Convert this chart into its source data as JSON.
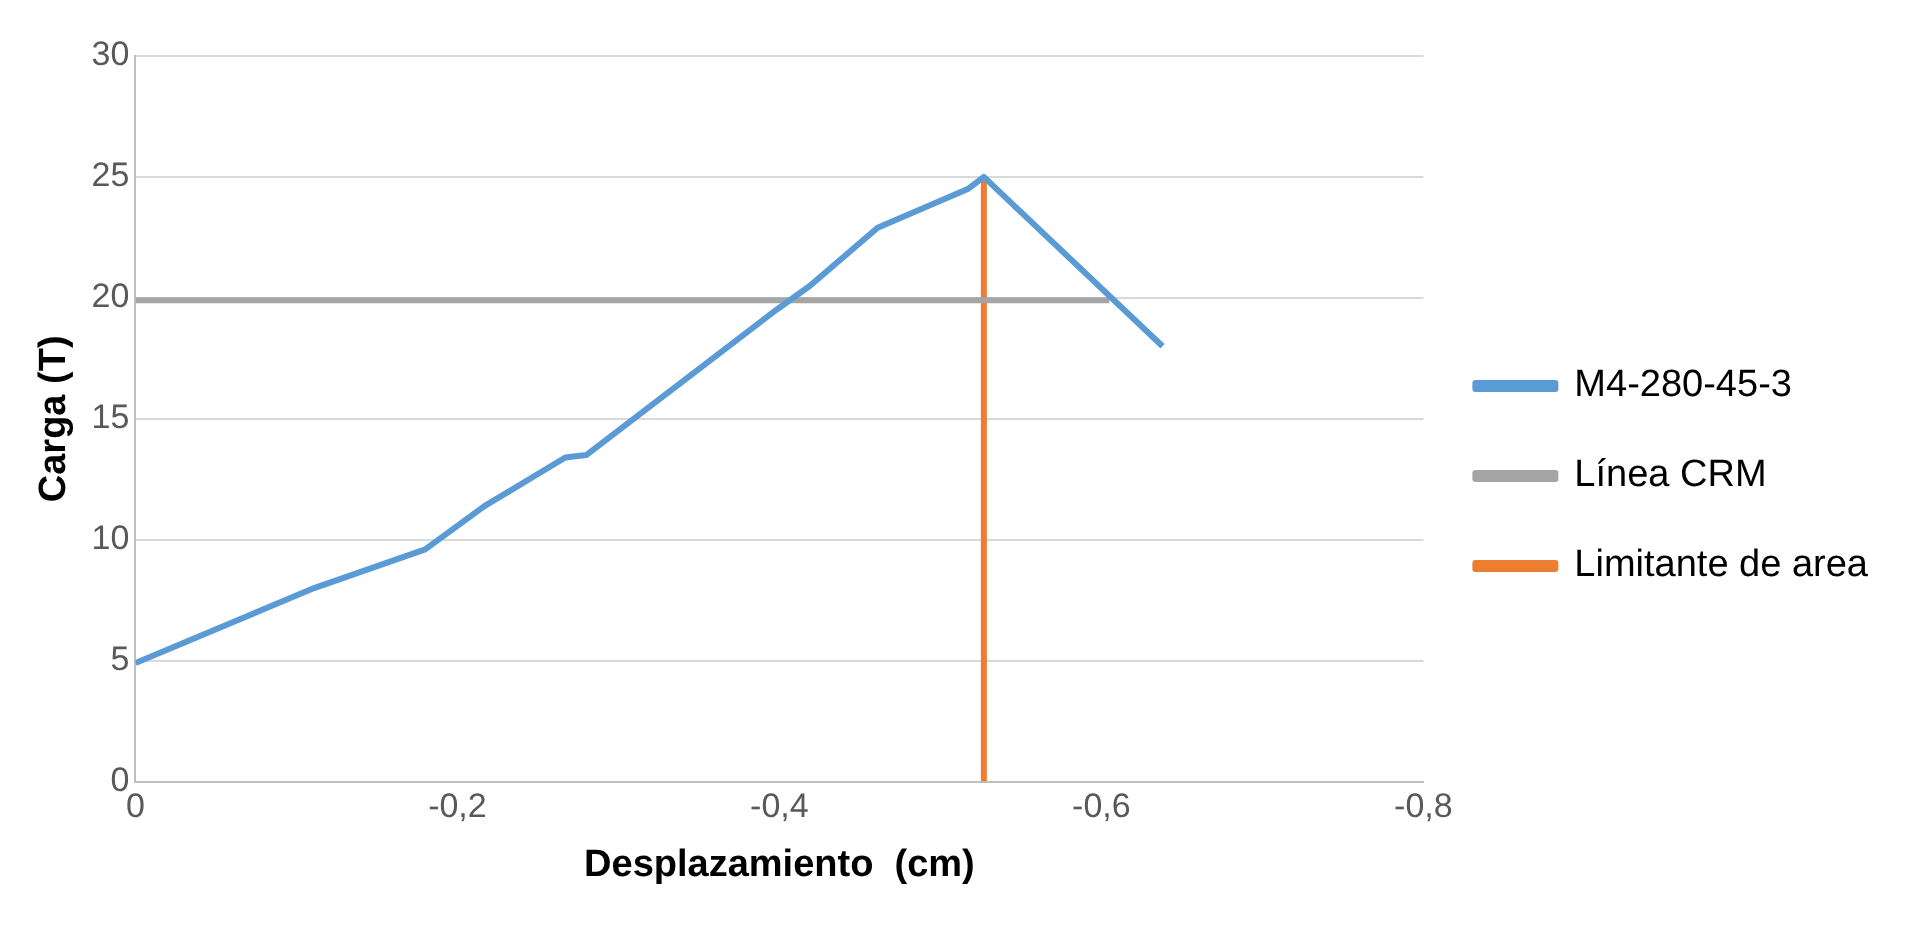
{
  "chart_data": {
    "type": "line",
    "xlabel": "Desplazamiento  (cm)",
    "ylabel": "Carga (T)",
    "xlim": [
      0,
      -0.8
    ],
    "xticks": [
      {
        "value": 0,
        "label": "0"
      },
      {
        "value": -0.2,
        "label": "-0,2"
      },
      {
        "value": -0.4,
        "label": "-0,4"
      },
      {
        "value": -0.6,
        "label": "-0,6"
      },
      {
        "value": -0.8,
        "label": "-0,8"
      }
    ],
    "ylim": [
      0,
      30
    ],
    "yticks": [
      0,
      5,
      10,
      15,
      20,
      25,
      30
    ],
    "grid": "y",
    "legend": "right",
    "marker": "none",
    "series": [
      {
        "name": "M4-280-45-3",
        "color": "#5b9bd5",
        "x": [
          0,
          -0.111,
          -0.18,
          -0.217,
          -0.267,
          -0.28,
          -0.398,
          -0.419,
          -0.461,
          -0.517,
          -0.527,
          -0.638
        ],
        "values": [
          4.9,
          8.0,
          9.6,
          11.4,
          13.4,
          13.5,
          19.5,
          20.5,
          22.9,
          24.5,
          25,
          18
        ]
      },
      {
        "name": "Línea CRM",
        "color": "#a5a5a5",
        "x": [
          0,
          -0.605
        ],
        "values": [
          19.9,
          19.9
        ]
      },
      {
        "name": "Limitante de area",
        "color": "#ed7d31",
        "x": [
          -0.527,
          -0.527
        ],
        "values": [
          0,
          25
        ]
      }
    ]
  }
}
